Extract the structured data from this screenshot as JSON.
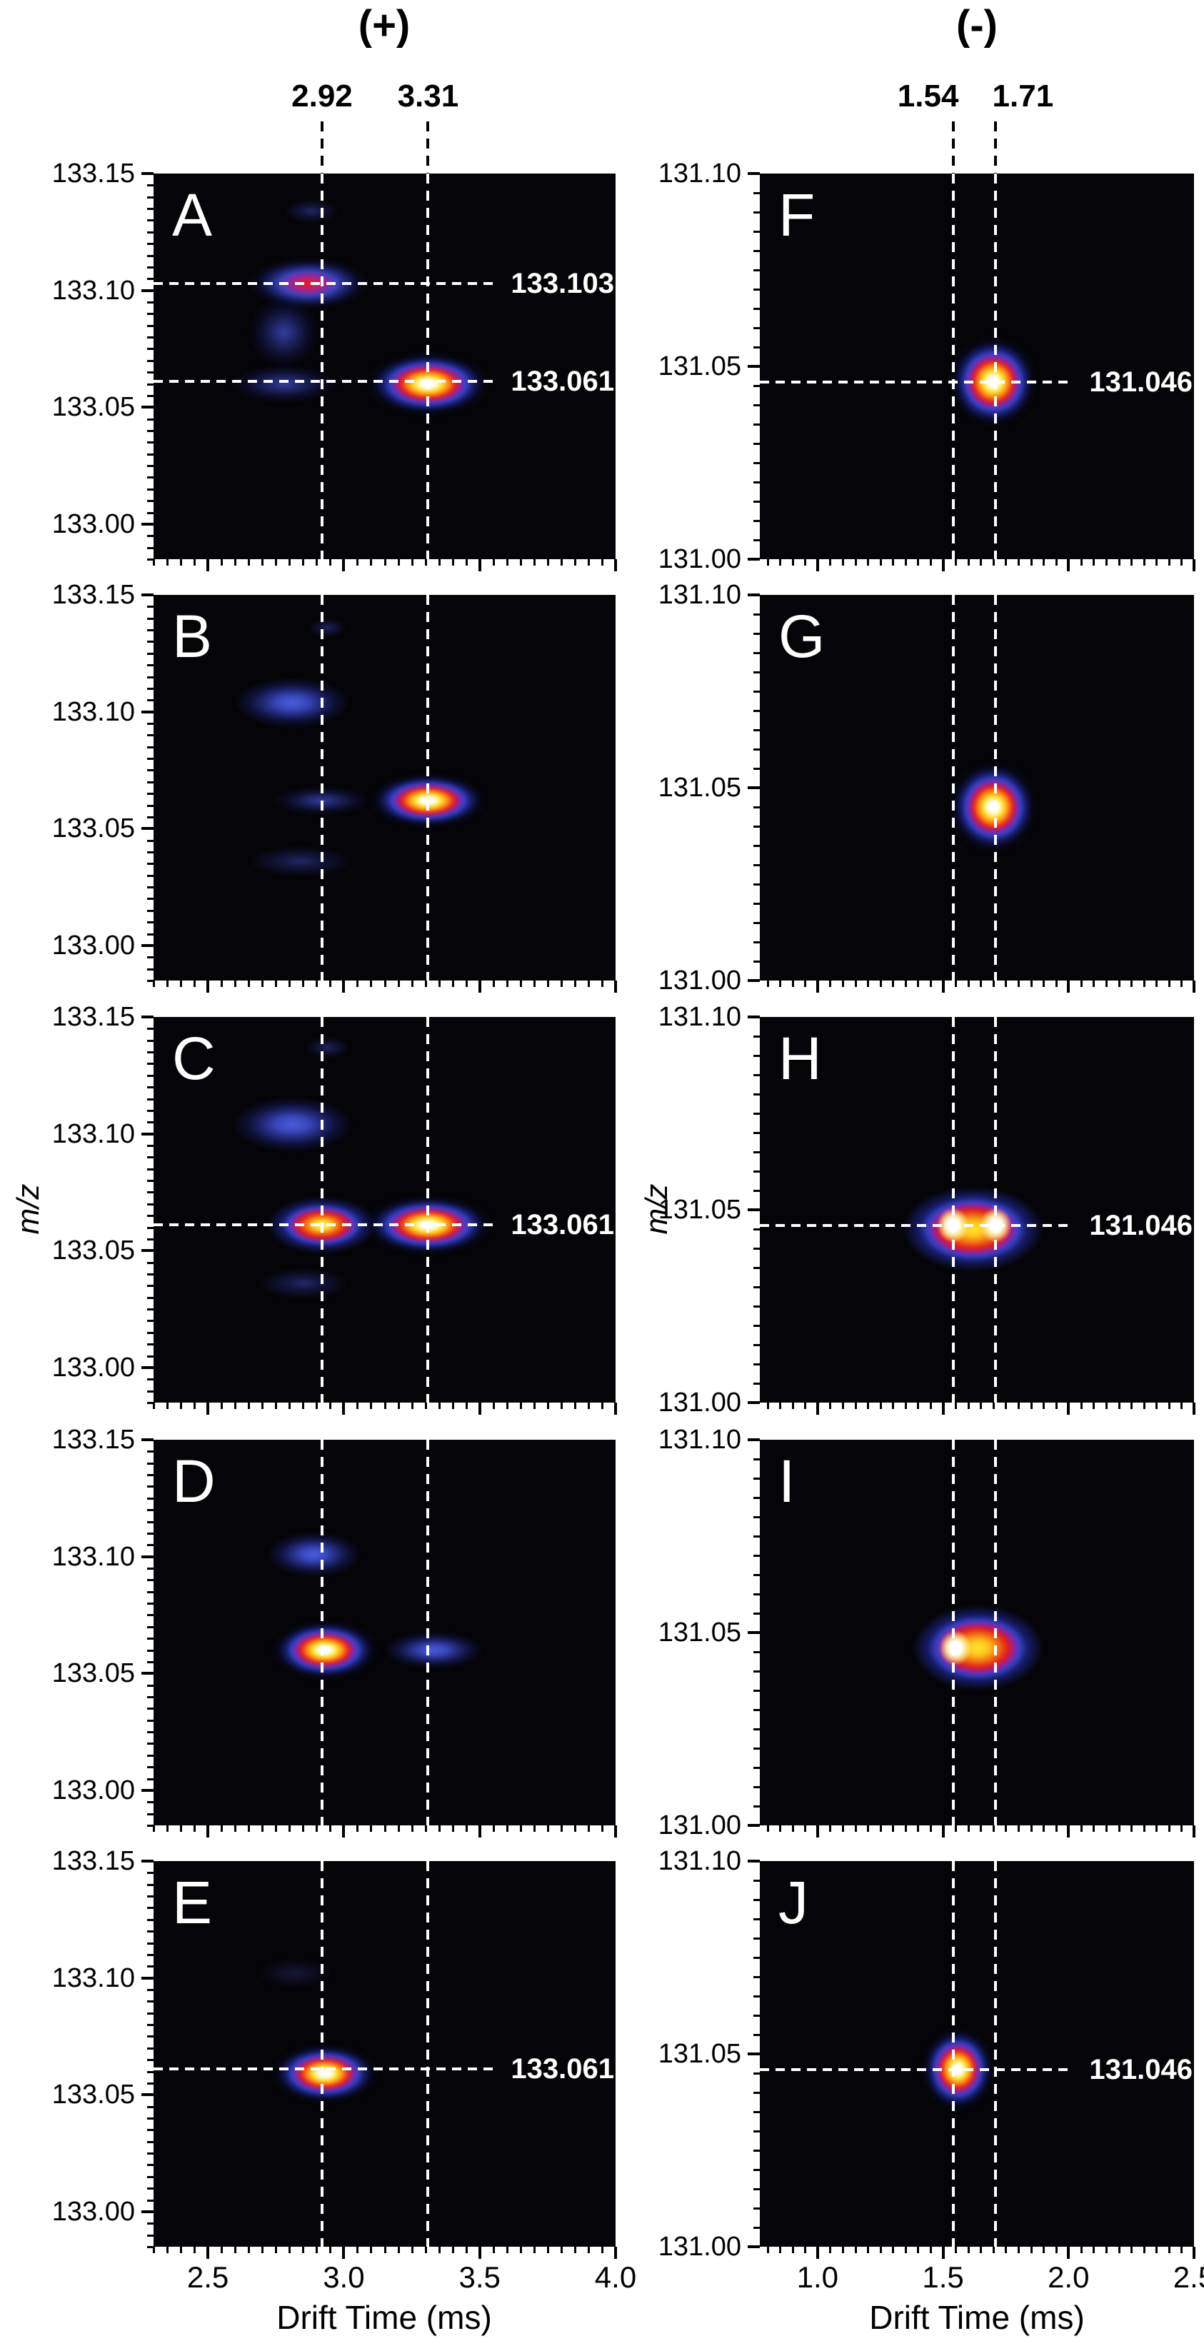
{
  "chart_data": {
    "type": "heatmap",
    "title": "",
    "heat_colorscale": [
      "#050508",
      "#3443c6",
      "#93219f",
      "#e01c1c",
      "#f37d13",
      "#ffe62e",
      "#ffffff"
    ],
    "guide_line_color": "#ffffff",
    "columns": [
      {
        "header": "(+)",
        "xlabel": "Drift Time (ms)",
        "ylabel": "m/z",
        "x_range": [
          2.3,
          4.0
        ],
        "y_range": [
          132.985,
          133.15
        ],
        "x_major_ticks": [
          2.5,
          3.0,
          3.5,
          4.0
        ],
        "x_tick_labels": [
          "2.5",
          "3.0",
          "3.5",
          "4.0"
        ],
        "x_minor_step": 0.05,
        "y_major_ticks": [
          133.15,
          133.1,
          133.05,
          133.0
        ],
        "y_tick_labels": [
          "133.15",
          "133.10",
          "133.05",
          "133.00"
        ],
        "y_minor_step": 0.005,
        "guides": [
          {
            "value": 2.92,
            "label": "2.92"
          },
          {
            "value": 3.31,
            "label": "3.31"
          }
        ]
      },
      {
        "header": "(-)",
        "xlabel": "Drift Time (ms)",
        "ylabel": "m/z",
        "x_range": [
          0.77,
          2.5
        ],
        "y_range": [
          131.0,
          131.1
        ],
        "x_major_ticks": [
          1.0,
          1.5,
          2.0,
          2.5
        ],
        "x_tick_labels": [
          "1.0",
          "1.5",
          "2.0",
          "2.5"
        ],
        "x_minor_step": 0.05,
        "y_major_ticks": [
          131.1,
          131.05,
          131.0
        ],
        "y_tick_labels": [
          "131.10",
          "131.05",
          "131.00"
        ],
        "y_minor_step": 0.005,
        "guides": [
          {
            "value": 1.54,
            "label": "1.54"
          },
          {
            "value": 1.71,
            "label": "1.71"
          }
        ]
      }
    ],
    "panels": [
      {
        "letter": "A",
        "column": 0,
        "row": 0,
        "annotations": [
          {
            "mz": 133.103,
            "label": "133.103"
          },
          {
            "mz": 133.061,
            "label": "133.061"
          }
        ],
        "blobs": [
          {
            "dt": 2.88,
            "mz": 133.134,
            "w": 0.2,
            "h": 0.01,
            "level": "faintBlue"
          },
          {
            "dt": 2.87,
            "mz": 133.103,
            "w": 0.44,
            "h": 0.022,
            "level": "redCore"
          },
          {
            "dt": 2.78,
            "mz": 133.082,
            "w": 0.26,
            "h": 0.03,
            "level": "blueWeak"
          },
          {
            "dt": 2.78,
            "mz": 133.06,
            "w": 0.4,
            "h": 0.016,
            "level": "blueWeak"
          },
          {
            "dt": 3.31,
            "mz": 133.06,
            "w": 0.46,
            "h": 0.028,
            "level": "whiteHot"
          }
        ]
      },
      {
        "letter": "B",
        "column": 0,
        "row": 1,
        "annotations": [],
        "blobs": [
          {
            "dt": 2.94,
            "mz": 133.136,
            "w": 0.14,
            "h": 0.008,
            "level": "faintBlue"
          },
          {
            "dt": 2.81,
            "mz": 133.104,
            "w": 0.44,
            "h": 0.022,
            "level": "blueMed"
          },
          {
            "dt": 2.92,
            "mz": 133.062,
            "w": 0.36,
            "h": 0.012,
            "level": "blueWeak"
          },
          {
            "dt": 3.31,
            "mz": 133.062,
            "w": 0.44,
            "h": 0.024,
            "level": "whiteHot"
          },
          {
            "dt": 2.84,
            "mz": 133.036,
            "w": 0.38,
            "h": 0.013,
            "level": "faintBlue"
          }
        ]
      },
      {
        "letter": "C",
        "column": 0,
        "row": 2,
        "annotations": [
          {
            "mz": 133.061,
            "label": "133.061"
          }
        ],
        "blobs": [
          {
            "dt": 2.94,
            "mz": 133.137,
            "w": 0.16,
            "h": 0.009,
            "level": "faintBlue"
          },
          {
            "dt": 2.81,
            "mz": 133.104,
            "w": 0.46,
            "h": 0.024,
            "level": "blueMed"
          },
          {
            "dt": 2.92,
            "mz": 133.061,
            "w": 0.4,
            "h": 0.024,
            "level": "yellowHot"
          },
          {
            "dt": 3.31,
            "mz": 133.061,
            "w": 0.48,
            "h": 0.026,
            "level": "whiteHot"
          },
          {
            "dt": 2.85,
            "mz": 133.036,
            "w": 0.34,
            "h": 0.013,
            "level": "faintBlue"
          }
        ]
      },
      {
        "letter": "D",
        "column": 0,
        "row": 3,
        "annotations": [],
        "blobs": [
          {
            "dt": 2.89,
            "mz": 133.101,
            "w": 0.36,
            "h": 0.02,
            "level": "blueMed"
          },
          {
            "dt": 2.93,
            "mz": 133.06,
            "w": 0.4,
            "h": 0.026,
            "level": "whiteHot"
          },
          {
            "dt": 3.33,
            "mz": 133.06,
            "w": 0.38,
            "h": 0.016,
            "level": "blueMed"
          }
        ]
      },
      {
        "letter": "E",
        "column": 0,
        "row": 4,
        "annotations": [
          {
            "mz": 133.061,
            "label": "133.061"
          }
        ],
        "blobs": [
          {
            "dt": 2.82,
            "mz": 133.102,
            "w": 0.28,
            "h": 0.013,
            "level": "darkFaint"
          },
          {
            "dt": 2.93,
            "mz": 133.059,
            "w": 0.4,
            "h": 0.026,
            "level": "whiteHot"
          }
        ]
      },
      {
        "letter": "F",
        "column": 1,
        "row": 0,
        "annotations": [
          {
            "mz": 131.046,
            "label": "131.046"
          }
        ],
        "blobs": [
          {
            "dt": 1.7,
            "mz": 131.046,
            "w": 0.36,
            "h": 0.024,
            "level": "whiteHot"
          }
        ]
      },
      {
        "letter": "G",
        "column": 1,
        "row": 1,
        "annotations": [],
        "blobs": [
          {
            "dt": 1.7,
            "mz": 131.045,
            "w": 0.36,
            "h": 0.024,
            "level": "whiteHot"
          }
        ]
      },
      {
        "letter": "H",
        "column": 1,
        "row": 2,
        "annotations": [
          {
            "mz": 131.046,
            "label": "131.046"
          }
        ],
        "blobs": [
          {
            "dt": 1.62,
            "mz": 131.045,
            "w": 0.56,
            "h": 0.022,
            "level": "bandHot"
          },
          {
            "dt": 1.54,
            "mz": 131.046,
            "w": 0.13,
            "h": 0.009,
            "level": "coreWhite"
          },
          {
            "dt": 1.71,
            "mz": 131.046,
            "w": 0.13,
            "h": 0.009,
            "level": "coreWhite"
          }
        ]
      },
      {
        "letter": "I",
        "column": 1,
        "row": 3,
        "annotations": [],
        "blobs": [
          {
            "dt": 1.64,
            "mz": 131.046,
            "w": 0.52,
            "h": 0.022,
            "level": "bandHot"
          },
          {
            "dt": 1.55,
            "mz": 131.046,
            "w": 0.13,
            "h": 0.009,
            "level": "coreWhite"
          }
        ]
      },
      {
        "letter": "J",
        "column": 1,
        "row": 4,
        "annotations": [
          {
            "mz": 131.046,
            "label": "131.046"
          }
        ],
        "blobs": [
          {
            "dt": 1.56,
            "mz": 131.046,
            "w": 0.3,
            "h": 0.022,
            "level": "whiteHot"
          }
        ]
      }
    ]
  }
}
